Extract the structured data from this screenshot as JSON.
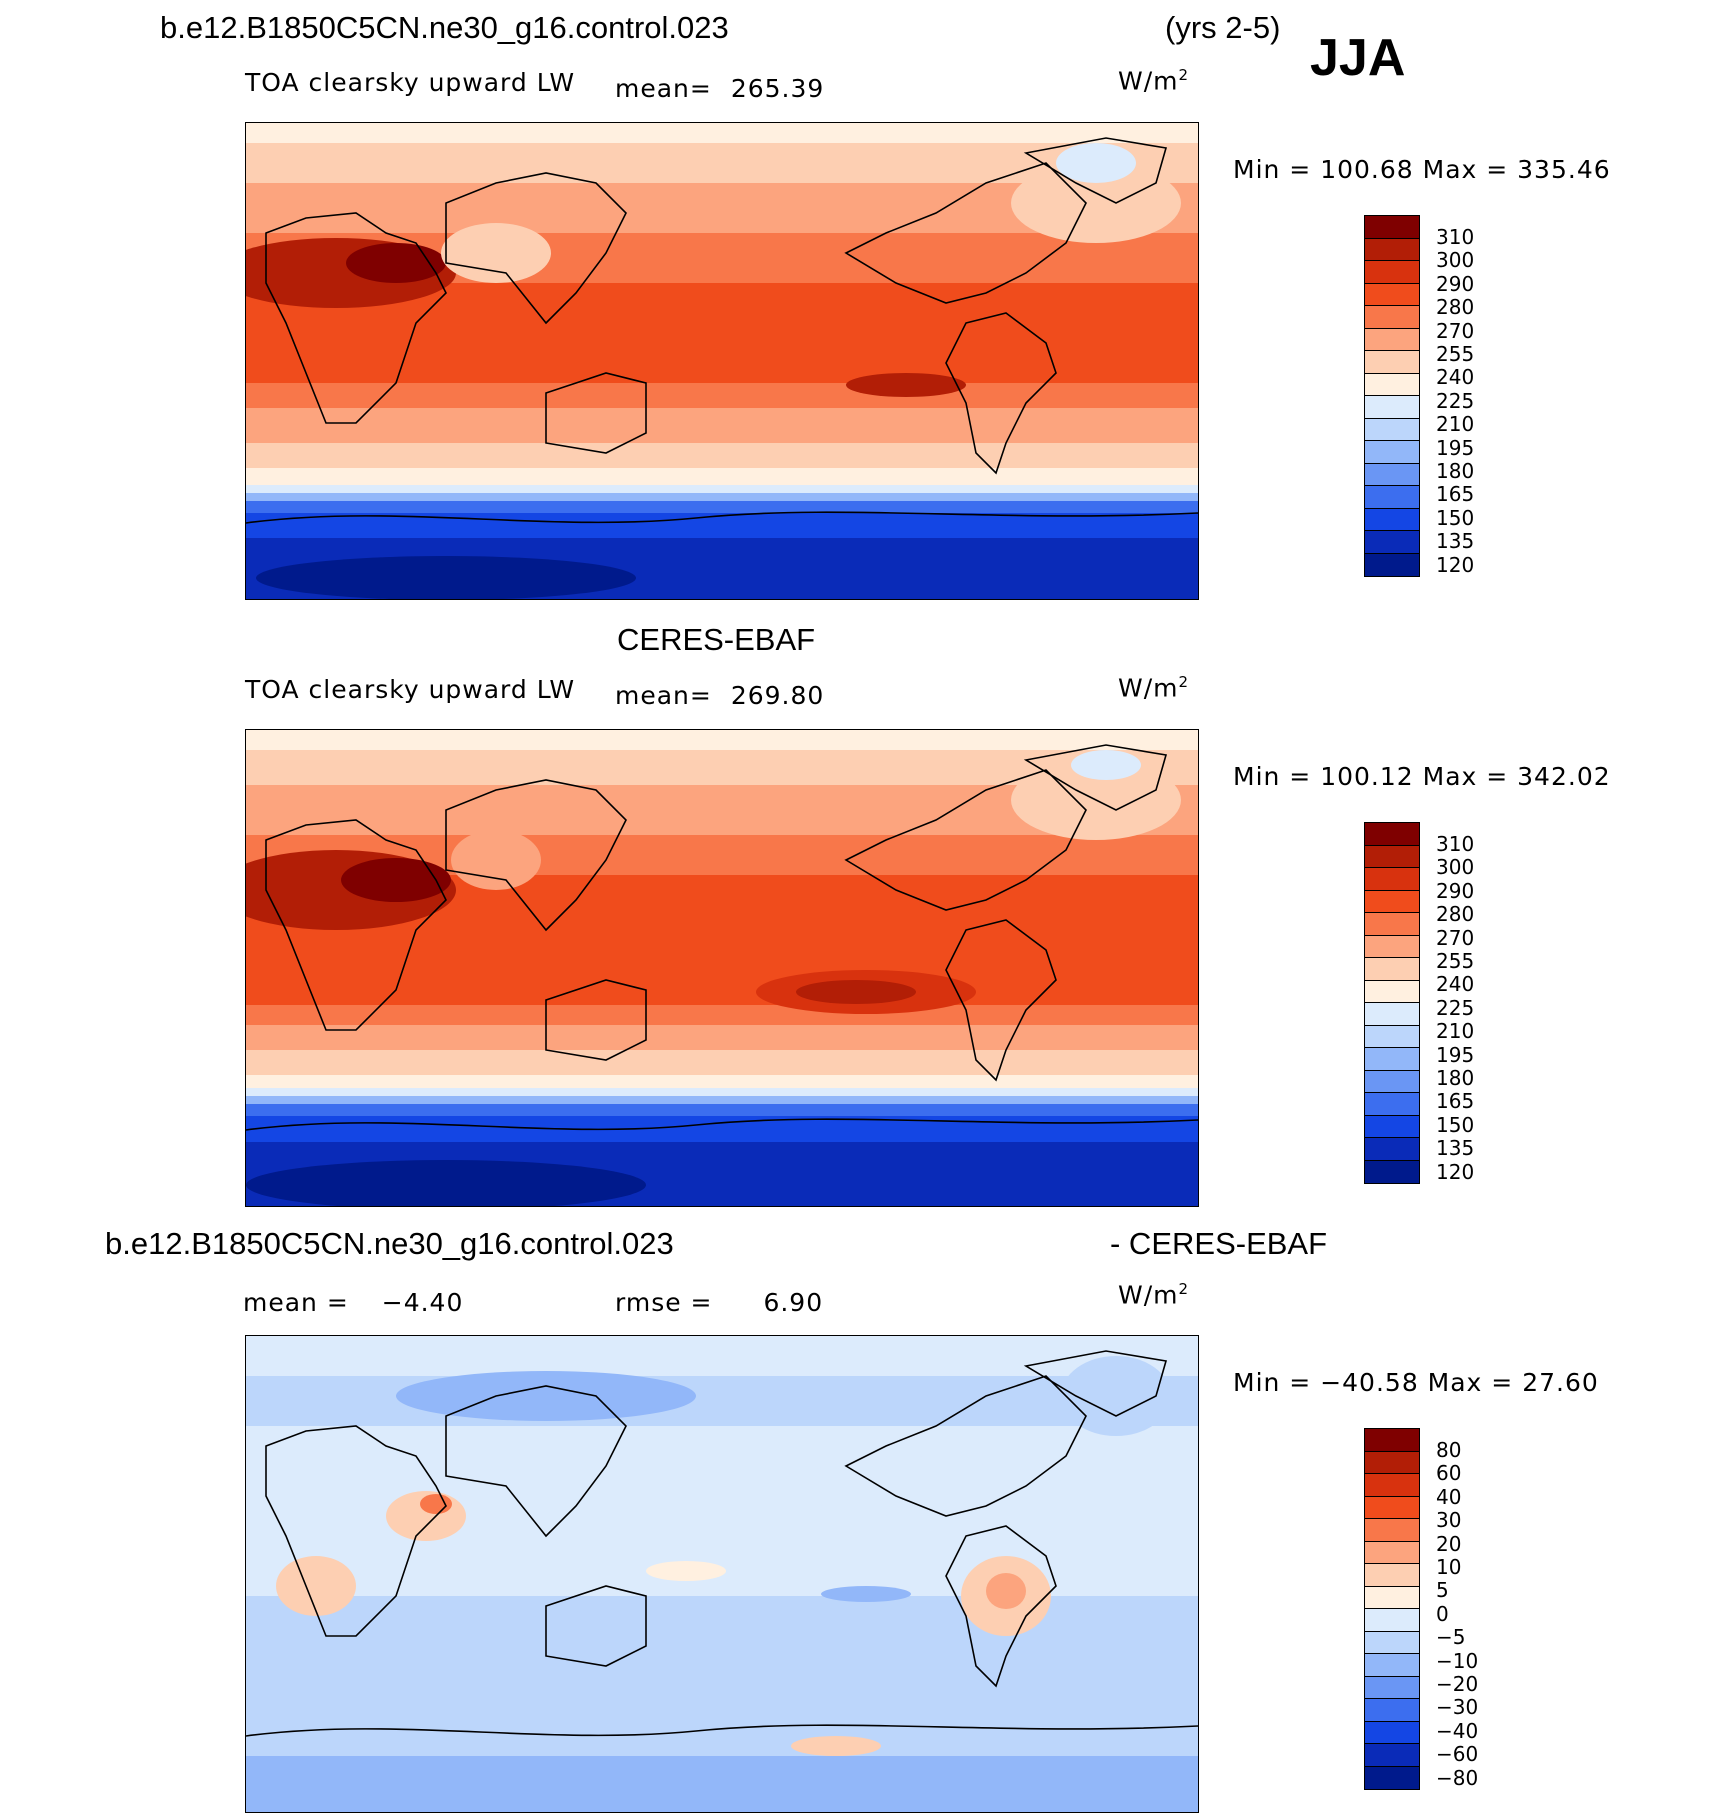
{
  "header": {
    "case_name": "b.e12.B1850C5CN.ne30_g16.control.023",
    "years": "(yrs 2-5)",
    "season": "JJA"
  },
  "panels": [
    {
      "name": "model",
      "title": "b.e12.B1850C5CN.ne30_g16.control.023",
      "variable": "TOA clearsky upward LW",
      "mean_label": "mean=",
      "mean_value": "265.39",
      "units": "W/m",
      "units_exp": "2",
      "minmax": "Min  =  100.68  Max  =  335.46",
      "levels": [
        "310",
        "300",
        "290",
        "280",
        "270",
        "255",
        "240",
        "225",
        "210",
        "195",
        "180",
        "165",
        "150",
        "135",
        "120"
      ]
    },
    {
      "name": "obs",
      "title": "CERES-EBAF",
      "variable": "TOA clearsky upward LW",
      "mean_label": "mean=",
      "mean_value": "269.80",
      "units": "W/m",
      "units_exp": "2",
      "minmax": "Min  =  100.12  Max  =  342.02",
      "levels": [
        "310",
        "300",
        "290",
        "280",
        "270",
        "255",
        "240",
        "225",
        "210",
        "195",
        "180",
        "165",
        "150",
        "135",
        "120"
      ]
    },
    {
      "name": "diff",
      "title_left": "b.e12.B1850C5CN.ne30_g16.control.023",
      "title_right": "- CERES-EBAF",
      "mean_label": "mean  =",
      "mean_value": "−4.40",
      "rmse_label": "rmse  =",
      "rmse_value": "6.90",
      "units": "W/m",
      "units_exp": "2",
      "minmax": "Min  =  −40.58  Max  =    27.60",
      "levels": [
        "80",
        "60",
        "40",
        "30",
        "20",
        "10",
        "5",
        "0",
        "−5",
        "−10",
        "−20",
        "−30",
        "−40",
        "−60",
        "−80"
      ]
    }
  ],
  "colors": {
    "abs_scale": [
      "#7f0000",
      "#b21e06",
      "#d8320e",
      "#f04c1c",
      "#f8774a",
      "#fca47e",
      "#fdcfb2",
      "#fff0e0",
      "#dcebfc",
      "#bcd6fb",
      "#92b7f9",
      "#6a96f4",
      "#3c6eef",
      "#1446e4",
      "#0a2bb8",
      "#001a8c"
    ],
    "diff_scale": [
      "#7f0000",
      "#b21e06",
      "#d8320e",
      "#f04c1c",
      "#f8774a",
      "#fca47e",
      "#fdcfb2",
      "#fff0e0",
      "#dcebfc",
      "#bcd6fb",
      "#92b7f9",
      "#6a96f4",
      "#3c6eef",
      "#1446e4",
      "#0a2bb8",
      "#001a8c"
    ],
    "land_outline": "#000000"
  }
}
